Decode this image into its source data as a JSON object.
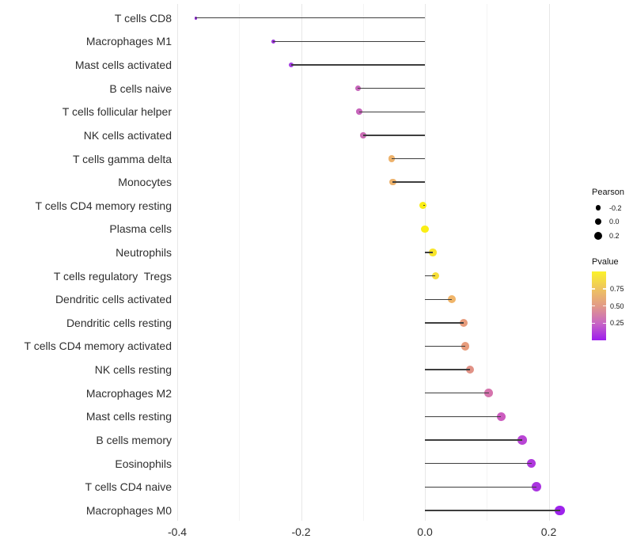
{
  "chart_data": {
    "type": "lollipop",
    "title": "",
    "xlabel": "",
    "ylabel": "",
    "grid": "vertical major + minor, no axis lines",
    "x_axis": {
      "ticks": [
        {
          "label": "-0.4",
          "value": -0.4
        },
        {
          "label": "-0.2",
          "value": -0.2
        },
        {
          "label": "0.0",
          "value": 0.0
        },
        {
          "label": "0.2",
          "value": 0.2
        }
      ],
      "minor_tick_values": [
        -0.3,
        -0.1,
        0.1
      ],
      "xlim": [
        -0.42,
        0.26
      ]
    },
    "points": [
      {
        "label": "T cells CD8",
        "pearson": -0.37,
        "pvalue": 0.05,
        "color": "#8a24d2"
      },
      {
        "label": "Macrophages M1",
        "pearson": -0.245,
        "pvalue": 0.12,
        "color": "#9932d8"
      },
      {
        "label": "Mast cells activated",
        "pearson": -0.216,
        "pvalue": 0.17,
        "color": "#a43ce2"
      },
      {
        "label": "B cells naive",
        "pearson": -0.108,
        "pvalue": 0.33,
        "color": "#c765bb"
      },
      {
        "label": "T cells follicular helper",
        "pearson": -0.106,
        "pvalue": 0.33,
        "color": "#c765bb"
      },
      {
        "label": "NK cells activated",
        "pearson": -0.1,
        "pvalue": 0.36,
        "color": "#ca6db5"
      },
      {
        "label": "T cells gamma delta",
        "pearson": -0.054,
        "pvalue": 0.65,
        "color": "#edb26c"
      },
      {
        "label": "Monocytes",
        "pearson": -0.052,
        "pvalue": 0.65,
        "color": "#edb26c"
      },
      {
        "label": "T cells CD4 memory resting",
        "pearson": -0.003,
        "pvalue": 0.95,
        "color": "#faee15"
      },
      {
        "label": "Plasma cells",
        "pearson": 0.0,
        "pvalue": 0.95,
        "color": "#faee15"
      },
      {
        "label": "Neutrophils",
        "pearson": 0.013,
        "pvalue": 0.9,
        "color": "#f8e52a"
      },
      {
        "label": "T cells regulatory  Tregs",
        "pearson": 0.017,
        "pvalue": 0.85,
        "color": "#f6de38"
      },
      {
        "label": "Dendritic cells activated",
        "pearson": 0.043,
        "pvalue": 0.65,
        "color": "#f0b56a"
      },
      {
        "label": "Dendritic cells resting",
        "pearson": 0.063,
        "pvalue": 0.55,
        "color": "#e79c7c"
      },
      {
        "label": "T cells CD4 memory activated",
        "pearson": 0.065,
        "pvalue": 0.55,
        "color": "#e79c7c"
      },
      {
        "label": "NK cells resting",
        "pearson": 0.073,
        "pvalue": 0.5,
        "color": "#e19286"
      },
      {
        "label": "Macrophages M2",
        "pearson": 0.103,
        "pvalue": 0.36,
        "color": "#d574ad"
      },
      {
        "label": "Mast cells resting",
        "pearson": 0.123,
        "pvalue": 0.27,
        "color": "#cc5cbf"
      },
      {
        "label": "B cells memory",
        "pearson": 0.157,
        "pvalue": 0.17,
        "color": "#b945d5"
      },
      {
        "label": "Eosinophils",
        "pearson": 0.172,
        "pvalue": 0.13,
        "color": "#af39dd"
      },
      {
        "label": "T cells CD4 naive",
        "pearson": 0.18,
        "pvalue": 0.11,
        "color": "#aa34e0"
      },
      {
        "label": "Macrophages M0",
        "pearson": 0.218,
        "pvalue": 0.05,
        "color": "#9e23ec"
      }
    ],
    "legend": {
      "size": {
        "title": "Pearson",
        "entries": [
          {
            "label": "-0.2",
            "value": -0.2
          },
          {
            "label": "0.0",
            "value": 0.0
          },
          {
            "label": "0.2",
            "value": 0.2
          }
        ]
      },
      "color": {
        "title": "Pvalue",
        "tick_labels": [
          "0.75",
          "0.50",
          "0.25"
        ],
        "tick_values": [
          0.75,
          0.5,
          0.25
        ],
        "range": [
          0.0,
          1.0
        ],
        "gradient_stops": [
          "#fbf22a",
          "#eec45f",
          "#e29a87",
          "#c867c3",
          "#9d1dee"
        ]
      }
    },
    "style_colors": {
      "stem": "#3e3e3e",
      "grid_major": "#e7e7e7",
      "grid_minor": "#f3f3f3",
      "axis_text": "#2f2f2f"
    }
  }
}
